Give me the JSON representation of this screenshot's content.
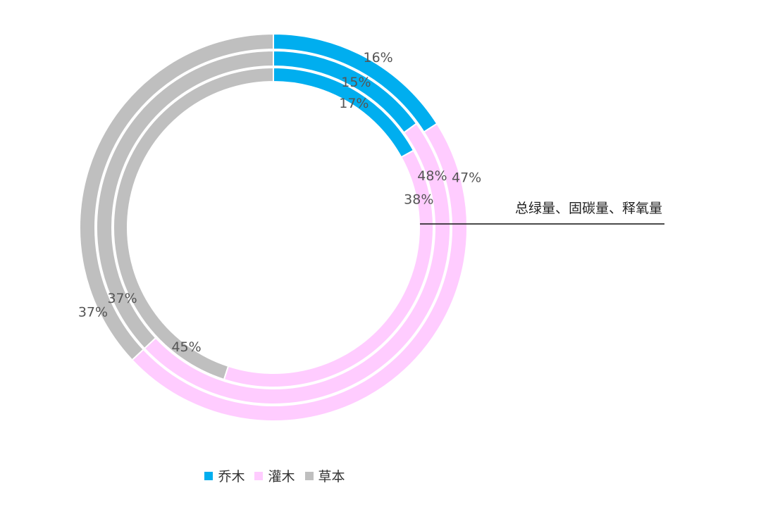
{
  "chart_data": {
    "type": "pie",
    "subtype": "nested-donut",
    "categories": [
      "乔木",
      "灌木",
      "草本"
    ],
    "colors": [
      "#00AEEF",
      "#FFCCFF",
      "#BFBFBF"
    ],
    "series": [
      {
        "values": [
          16,
          47,
          37
        ]
      },
      {
        "values": [
          15,
          48,
          37
        ]
      },
      {
        "values": [
          17,
          38,
          45
        ]
      }
    ],
    "annotation": "总绿量、固碳量、释氧量",
    "legend_position": "bottom"
  }
}
